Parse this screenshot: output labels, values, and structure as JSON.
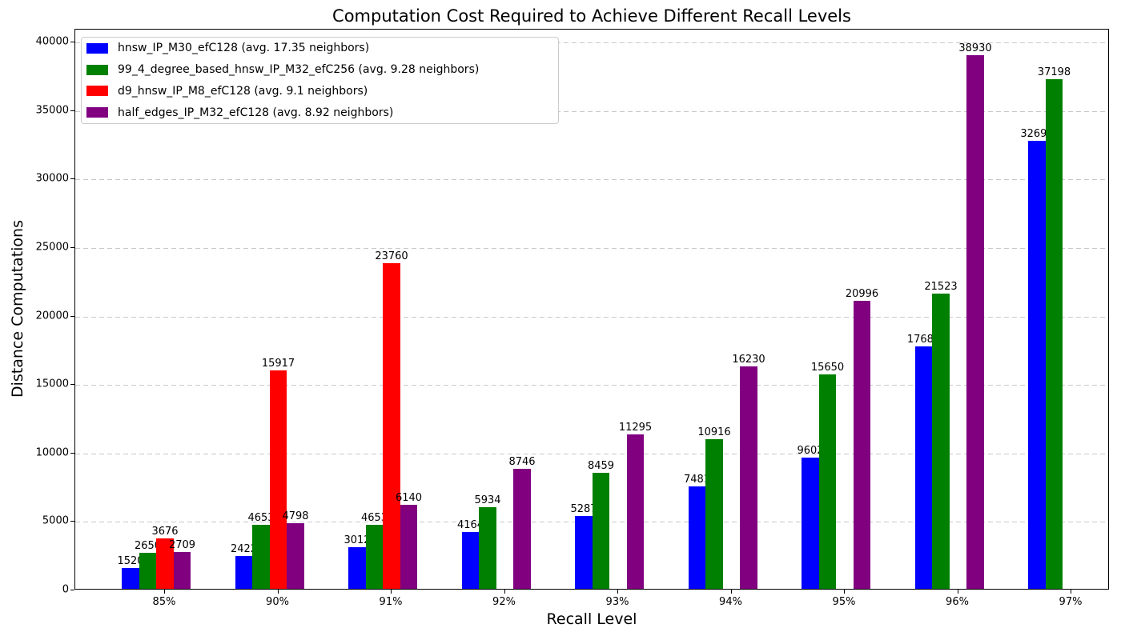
{
  "chart_data": {
    "type": "bar",
    "title": "Computation Cost Required to Achieve Different Recall Levels",
    "xlabel": "Recall Level",
    "ylabel": "Distance Computations",
    "categories": [
      "85%",
      "90%",
      "91%",
      "92%",
      "93%",
      "94%",
      "95%",
      "96%",
      "97%"
    ],
    "series": [
      {
        "name": "hnsw_IP_M30_efC128 (avg. 17.35 neighbors)",
        "color": "#0000ff",
        "values": [
          1520,
          2422,
          3012,
          4164,
          5287,
          7481,
          9602,
          17689,
          32692
        ]
      },
      {
        "name": "99_4_degree_based_hnsw_IP_M32_efC256 (avg. 9.28 neighbors)",
        "color": "#008000",
        "values": [
          2650,
          4653,
          4653,
          5934,
          8459,
          10916,
          15650,
          21523,
          37198
        ]
      },
      {
        "name": "d9_hnsw_IP_M8_efC128 (avg. 9.1 neighbors)",
        "color": "#ff0000",
        "values": [
          3676,
          15917,
          23760,
          null,
          null,
          null,
          null,
          null,
          null
        ]
      },
      {
        "name": "half_edges_IP_M32_efC128 (avg. 8.92 neighbors)",
        "color": "#800080",
        "values": [
          2709,
          4798,
          6140,
          8746,
          11295,
          16230,
          20996,
          38930,
          null
        ]
      }
    ],
    "yticks": [
      0,
      5000,
      10000,
      15000,
      20000,
      25000,
      30000,
      35000,
      40000
    ],
    "ylim": [
      0,
      40934
    ],
    "grid": "dashed-horizontal-y",
    "legend_position": "upper-left",
    "bar_value_labels": true
  }
}
